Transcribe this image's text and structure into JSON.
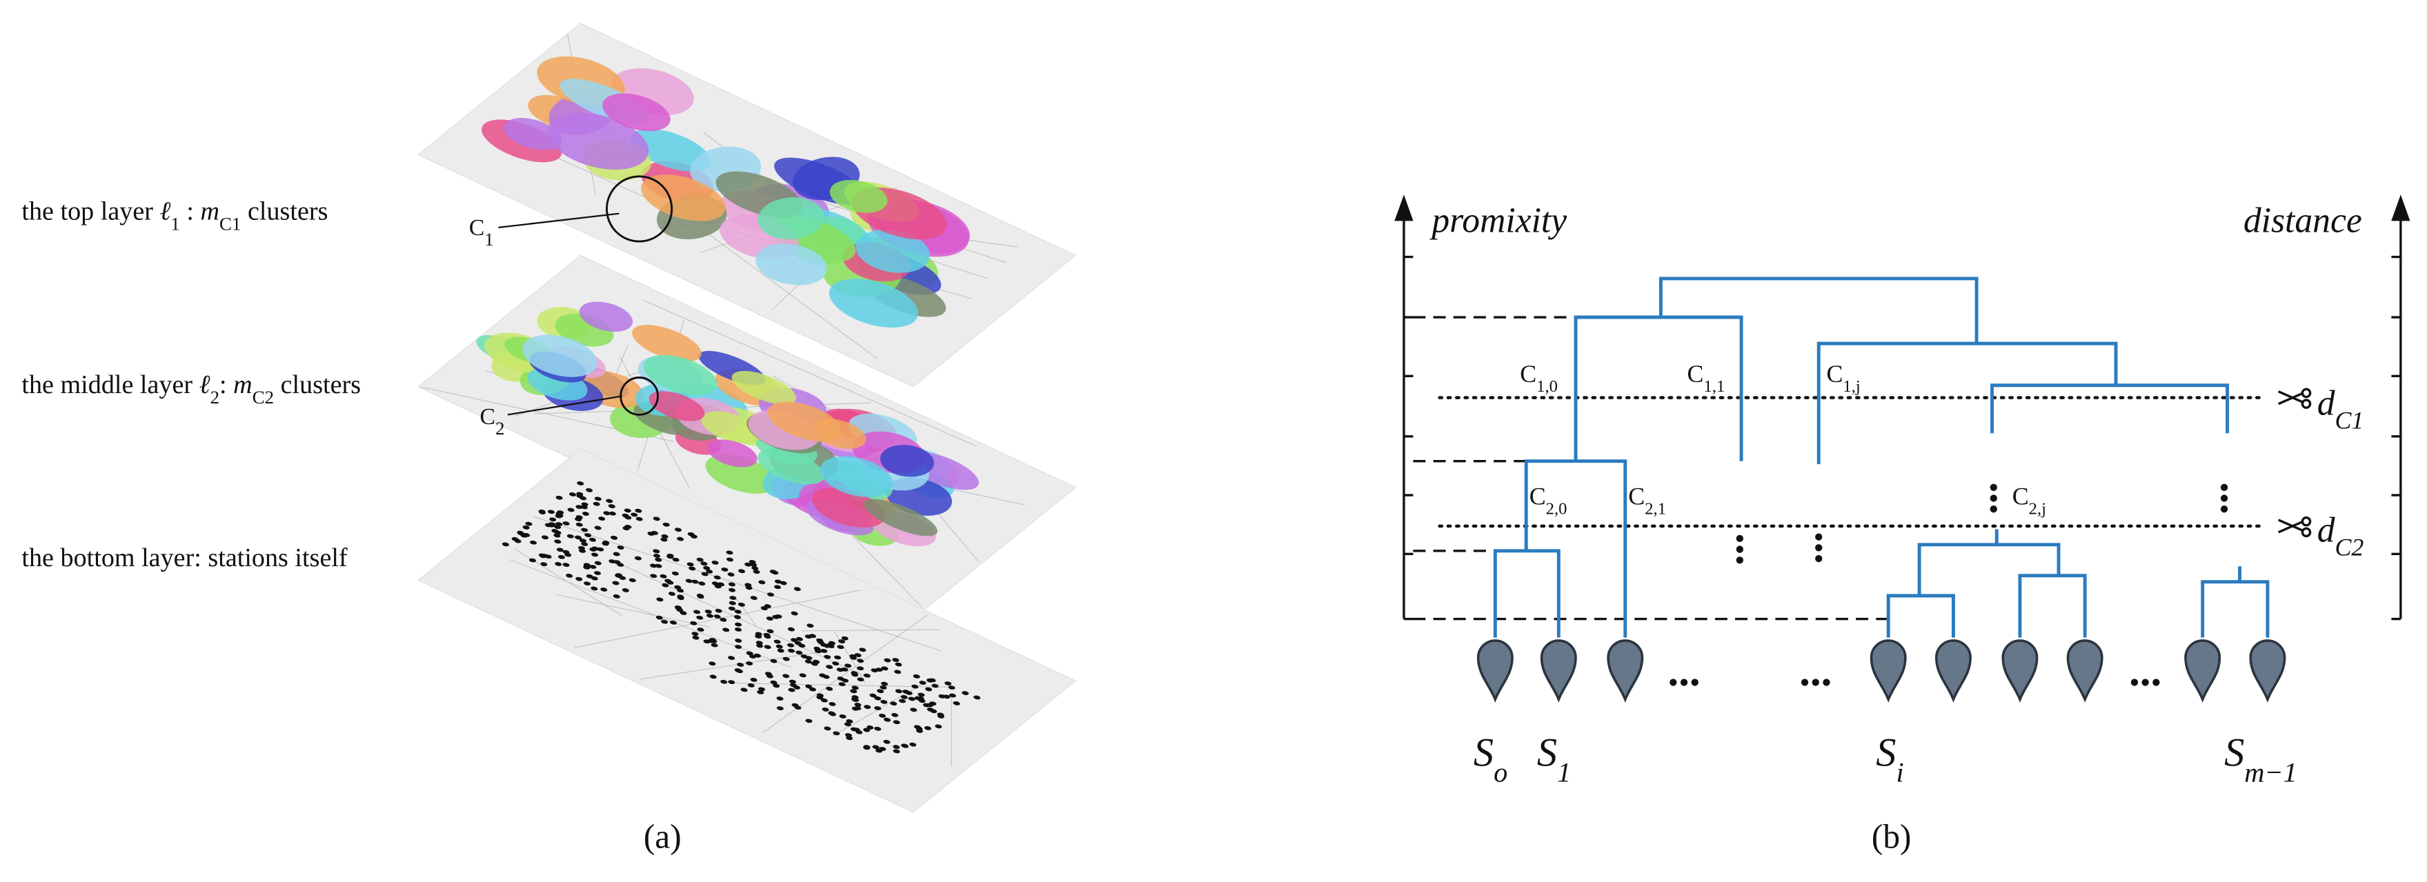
{
  "panel_a": {
    "layers": [
      {
        "prefix": "the top layer ",
        "symbol": "ℓ",
        "symbol_sub": "1",
        "sep": " : ",
        "var": "m",
        "var_sub": "C1",
        "suffix": " clusters"
      },
      {
        "prefix": "the middle layer ",
        "symbol": "ℓ",
        "symbol_sub": "2",
        "sep": ": ",
        "var": "m",
        "var_sub": "C2",
        "suffix": " clusters"
      },
      {
        "text": "the bottom layer: stations itself"
      }
    ],
    "markers": [
      {
        "base": "C",
        "sub": "1"
      },
      {
        "base": "C",
        "sub": "2"
      }
    ],
    "caption": "(a)"
  },
  "panel_b": {
    "left_axis": "promixity",
    "right_axis": "distance",
    "clusters": [
      {
        "base": "C",
        "sub": "1,0"
      },
      {
        "base": "C",
        "sub": "1,1"
      },
      {
        "base": "C",
        "sub": "1,j"
      },
      {
        "base": "C",
        "sub": "2,0"
      },
      {
        "base": "C",
        "sub": "2,1"
      },
      {
        "base": "C",
        "sub": "2,j"
      }
    ],
    "cuts": [
      {
        "base": "d",
        "sub": "C1"
      },
      {
        "base": "d",
        "sub": "C2"
      }
    ],
    "stations": [
      {
        "base": "S",
        "sub": "o"
      },
      {
        "base": "S",
        "sub": "1"
      },
      {
        "base": "S",
        "sub": "i"
      },
      {
        "base": "S",
        "sub": "m−1"
      }
    ],
    "caption": "(b)"
  }
}
